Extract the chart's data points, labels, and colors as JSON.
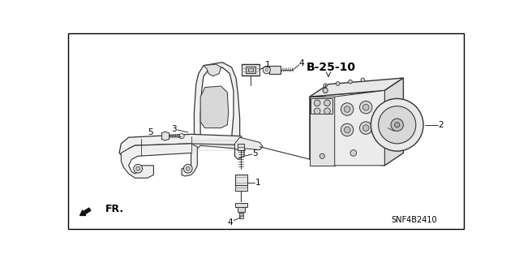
{
  "bg_color": "#ffffff",
  "line_color": "#333333",
  "text_color": "#000000",
  "part_label": "B-25-10",
  "part_code": "SNF4B2410",
  "fr_label": "FR.",
  "label_fontsize": 7.5,
  "code_fontsize": 7,
  "bold_fontsize": 9
}
